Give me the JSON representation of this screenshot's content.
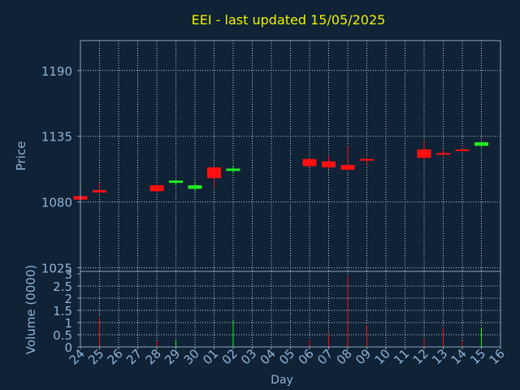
{
  "chart_data": [
    {
      "type": "candlestick",
      "title": "EEI - last updated 15/05/2025",
      "ylabel": "Price",
      "xlabel": "",
      "ylim": [
        1022,
        1215
      ],
      "yticks": [
        1025,
        1080,
        1135,
        1190
      ],
      "grid": true,
      "colors": {
        "up": "#22ee22",
        "down": "#ff1010",
        "title": "#f2f200",
        "text": "#8fb4d4",
        "grid": "#c8d2dc",
        "frame": "#8fa6bc",
        "background": "#0f2236"
      },
      "candles": [
        {
          "day": "24",
          "open": 1085,
          "high": 1085,
          "low": 1081,
          "close": 1082
        },
        {
          "day": "25",
          "open": 1090,
          "high": 1096,
          "low": 1088,
          "close": 1088
        },
        {
          "day": "28",
          "open": 1094,
          "high": 1095,
          "low": 1088,
          "close": 1089
        },
        {
          "day": "29",
          "open": 1096,
          "high": 1099,
          "low": 1094,
          "close": 1098
        },
        {
          "day": "30",
          "open": 1091,
          "high": 1096,
          "low": 1089,
          "close": 1094
        },
        {
          "day": "01",
          "open": 1109,
          "high": 1110,
          "low": 1093,
          "close": 1100
        },
        {
          "day": "02",
          "open": 1106,
          "high": 1111,
          "low": 1104,
          "close": 1108
        },
        {
          "day": "06",
          "open": 1116,
          "high": 1117,
          "low": 1109,
          "close": 1110
        },
        {
          "day": "07",
          "open": 1114,
          "high": 1119,
          "low": 1107,
          "close": 1109
        },
        {
          "day": "08",
          "open": 1111,
          "high": 1127,
          "low": 1106,
          "close": 1107
        },
        {
          "day": "09",
          "open": 1116,
          "high": 1117,
          "low": 1110,
          "close": 1115
        },
        {
          "day": "12",
          "open": 1124,
          "high": 1131,
          "low": 1115,
          "close": 1117
        },
        {
          "day": "13",
          "open": 1121,
          "high": 1124,
          "low": 1118,
          "close": 1120
        },
        {
          "day": "14",
          "open": 1124,
          "high": 1125,
          "low": 1122,
          "close": 1123
        },
        {
          "day": "15",
          "open": 1127,
          "high": 1130,
          "low": 1126,
          "close": 1130
        }
      ]
    },
    {
      "type": "bar",
      "ylabel": "Volume (0000)",
      "xlabel": "Day",
      "ylim": [
        0,
        3
      ],
      "yticks": [
        0,
        0.5,
        1,
        1.5,
        2,
        2.5,
        3
      ],
      "ytick_labels": [
        "0",
        "0.5",
        "1",
        "1.5",
        "2",
        "2.5",
        "3"
      ],
      "categories": [
        "24",
        "25",
        "26",
        "27",
        "28",
        "29",
        "30",
        "01",
        "02",
        "03",
        "04",
        "05",
        "06",
        "07",
        "08",
        "09",
        "10",
        "11",
        "12",
        "13",
        "14",
        "15",
        "16"
      ],
      "volumes": [
        {
          "day": "25",
          "value": 1.2,
          "direction": "down"
        },
        {
          "day": "28",
          "value": 0.25,
          "direction": "down"
        },
        {
          "day": "29",
          "value": 0.3,
          "direction": "up"
        },
        {
          "day": "02",
          "value": 1.05,
          "direction": "up"
        },
        {
          "day": "06",
          "value": 0.3,
          "direction": "down"
        },
        {
          "day": "07",
          "value": 0.5,
          "direction": "down"
        },
        {
          "day": "08",
          "value": 2.9,
          "direction": "down"
        },
        {
          "day": "09",
          "value": 0.9,
          "direction": "down"
        },
        {
          "day": "12",
          "value": 0.35,
          "direction": "down"
        },
        {
          "day": "13",
          "value": 0.8,
          "direction": "down"
        },
        {
          "day": "14",
          "value": 0.25,
          "direction": "down"
        },
        {
          "day": "15",
          "value": 0.8,
          "direction": "up"
        }
      ]
    }
  ]
}
